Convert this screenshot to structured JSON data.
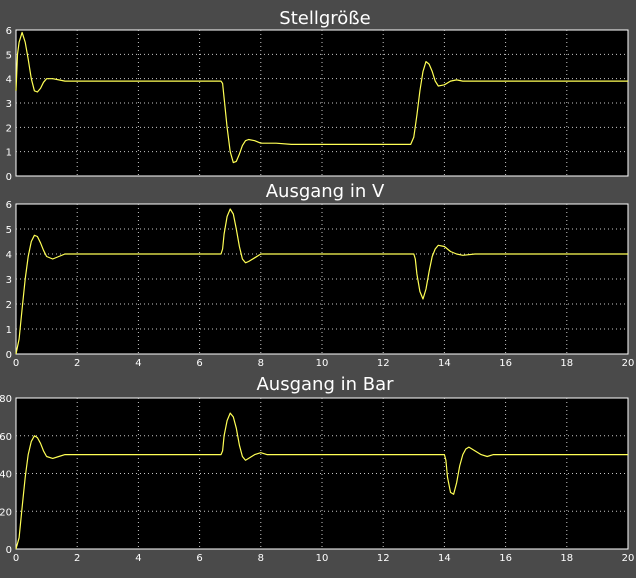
{
  "colors": {
    "background": "#4a4a4a",
    "axes_background": "#000000",
    "grid": "#c8c8c8",
    "trace": "#ffff55",
    "text": "#ffffff"
  },
  "chart_data": [
    {
      "type": "line",
      "title": "Stellgröße",
      "xlim": [
        0,
        20
      ],
      "ylim": [
        0,
        6
      ],
      "xticks": [
        "0",
        "2",
        "4",
        "6",
        "8",
        "10",
        "12",
        "14",
        "16",
        "18",
        "20"
      ],
      "yticks": [
        "0",
        "1",
        "2",
        "3",
        "4",
        "5",
        "6"
      ],
      "xtick_labels_visible": false,
      "grid": true,
      "series": [
        {
          "x": [
            0,
            0.05,
            0.1,
            0.2,
            0.3,
            0.4,
            0.5,
            0.6,
            0.7,
            0.8,
            0.9,
            1.0,
            1.2,
            1.4,
            1.6,
            2.0,
            3.0,
            4.0,
            5.0,
            6.0,
            6.7,
            6.75,
            6.8,
            6.9,
            7.0,
            7.1,
            7.2,
            7.3,
            7.4,
            7.5,
            7.6,
            7.8,
            8.0,
            8.5,
            9.0,
            10.0,
            11.0,
            12.0,
            12.9,
            13.0,
            13.1,
            13.2,
            13.3,
            13.4,
            13.5,
            13.6,
            13.7,
            13.8,
            14.0,
            14.2,
            14.4,
            14.6,
            15.0,
            16.0,
            17.0,
            18.0,
            19.0,
            20.0
          ],
          "y": [
            3.5,
            5.0,
            5.5,
            5.9,
            5.5,
            4.8,
            4.0,
            3.5,
            3.45,
            3.6,
            3.85,
            4.0,
            4.0,
            3.95,
            3.9,
            3.9,
            3.9,
            3.9,
            3.9,
            3.9,
            3.9,
            3.8,
            3.2,
            2.0,
            1.0,
            0.55,
            0.6,
            0.9,
            1.25,
            1.45,
            1.5,
            1.45,
            1.35,
            1.35,
            1.3,
            1.3,
            1.3,
            1.3,
            1.3,
            1.6,
            2.5,
            3.5,
            4.3,
            4.7,
            4.6,
            4.3,
            3.9,
            3.7,
            3.75,
            3.9,
            3.95,
            3.9,
            3.9,
            3.9,
            3.9,
            3.9,
            3.9,
            3.9
          ]
        }
      ]
    },
    {
      "type": "line",
      "title": "Ausgang in V",
      "xlim": [
        0,
        20
      ],
      "ylim": [
        0,
        6
      ],
      "xticks": [
        "0",
        "2",
        "4",
        "6",
        "8",
        "10",
        "12",
        "14",
        "16",
        "18",
        "20"
      ],
      "yticks": [
        "0",
        "1",
        "2",
        "3",
        "4",
        "5",
        "6"
      ],
      "xtick_labels_visible": true,
      "grid": true,
      "series": [
        {
          "x": [
            0,
            0.1,
            0.2,
            0.3,
            0.4,
            0.5,
            0.6,
            0.7,
            0.8,
            0.9,
            1.0,
            1.2,
            1.4,
            1.6,
            1.8,
            2.0,
            3.0,
            4.0,
            5.0,
            6.0,
            6.7,
            6.75,
            6.8,
            6.9,
            7.0,
            7.1,
            7.2,
            7.3,
            7.4,
            7.5,
            7.6,
            7.8,
            8.0,
            8.2,
            8.5,
            9.0,
            10.0,
            11.0,
            12.0,
            13.0,
            13.05,
            13.1,
            13.2,
            13.3,
            13.4,
            13.5,
            13.6,
            13.7,
            13.8,
            14.0,
            14.2,
            14.4,
            14.6,
            15.0,
            16.0,
            17.0,
            18.0,
            19.0,
            20.0
          ],
          "y": [
            0,
            0.6,
            1.8,
            3.0,
            3.9,
            4.5,
            4.75,
            4.7,
            4.45,
            4.15,
            3.9,
            3.8,
            3.9,
            4.0,
            4.0,
            4.0,
            4.0,
            4.0,
            4.0,
            4.0,
            4.0,
            4.2,
            4.8,
            5.5,
            5.8,
            5.6,
            5.0,
            4.3,
            3.8,
            3.65,
            3.7,
            3.85,
            4.0,
            4.0,
            4.0,
            4.0,
            4.0,
            4.0,
            4.0,
            4.0,
            3.8,
            3.2,
            2.5,
            2.2,
            2.6,
            3.3,
            3.9,
            4.2,
            4.35,
            4.3,
            4.1,
            4.0,
            3.95,
            4.0,
            4.0,
            4.0,
            4.0,
            4.0,
            4.0
          ]
        }
      ]
    },
    {
      "type": "line",
      "title": "Ausgang in Bar",
      "xlim": [
        0,
        20
      ],
      "ylim": [
        0,
        80
      ],
      "xticks": [
        "0",
        "2",
        "4",
        "6",
        "8",
        "10",
        "12",
        "14",
        "16",
        "18",
        "20"
      ],
      "yticks": [
        "0",
        "20",
        "40",
        "60",
        "80"
      ],
      "xtick_labels_visible": true,
      "grid": true,
      "series": [
        {
          "x": [
            0,
            0.1,
            0.2,
            0.3,
            0.4,
            0.5,
            0.6,
            0.7,
            0.8,
            0.9,
            1.0,
            1.2,
            1.4,
            1.6,
            1.8,
            2.0,
            3.0,
            4.0,
            5.0,
            6.0,
            6.7,
            6.75,
            6.8,
            6.9,
            7.0,
            7.1,
            7.2,
            7.3,
            7.4,
            7.5,
            7.6,
            7.8,
            8.0,
            8.2,
            8.5,
            9.0,
            10.0,
            11.0,
            12.0,
            13.0,
            14.0,
            14.05,
            14.1,
            14.2,
            14.3,
            14.4,
            14.5,
            14.6,
            14.7,
            14.8,
            15.0,
            15.2,
            15.4,
            15.6,
            16.0,
            17.0,
            18.0,
            19.0,
            20.0
          ],
          "y": [
            0,
            6,
            22,
            38,
            50,
            57,
            60,
            59,
            56,
            52,
            49,
            48,
            49,
            50,
            50,
            50,
            50,
            50,
            50,
            50,
            50,
            52,
            60,
            68,
            72,
            70,
            64,
            55,
            49,
            47,
            48,
            50,
            51,
            50,
            50,
            50,
            50,
            50,
            50,
            50,
            50,
            47,
            38,
            30,
            29,
            35,
            44,
            50,
            53,
            54,
            52,
            50,
            49,
            50,
            50,
            50,
            50,
            50,
            50
          ]
        }
      ]
    }
  ]
}
